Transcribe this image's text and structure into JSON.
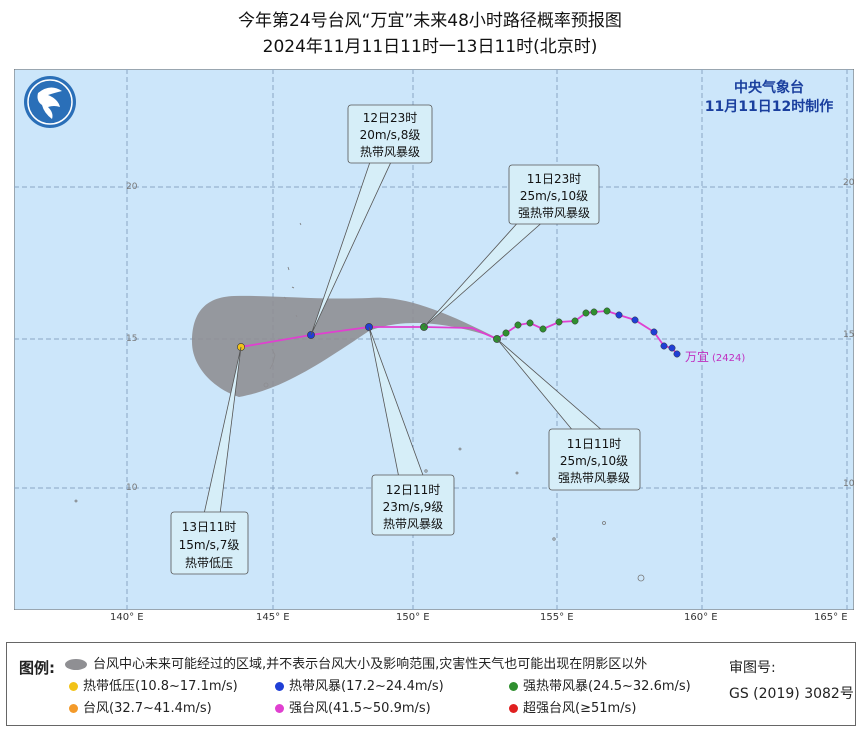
{
  "title_line1": "今年第24号台风“万宜”未来48小时路径概率预报图",
  "title_line2": "2024年11月11日11时一13日11时(北京时)",
  "issuer": {
    "name": "中央气象台",
    "time": "11月11日12时制作"
  },
  "typhoon_label": "万宜",
  "typhoon_code": "(2424)",
  "lon_labels": [
    "140° E",
    "145° E",
    "150° E",
    "155° E",
    "160° E",
    "165° E"
  ],
  "lat_labels": [
    "20",
    "15",
    "10"
  ],
  "callouts": [
    {
      "time": "12日23时",
      "wind": "20m/s,8级",
      "level": "热带风暴级"
    },
    {
      "time": "11日23时",
      "wind": "25m/s,10级",
      "level": "强热带风暴级"
    },
    {
      "time": "11日11时",
      "wind": "25m/s,10级",
      "level": "强热带风暴级"
    },
    {
      "time": "12日11时",
      "wind": "23m/s,9级",
      "level": "热带风暴级"
    },
    {
      "time": "13日11时",
      "wind": "15m/s,7级",
      "level": "热带低压"
    }
  ],
  "legend": {
    "title": "图例:",
    "cone_text": "台风中心未来可能经过的区域,并不表示台风大小及影响范围,灾害性天气也可能出现在阴影区以外",
    "items": [
      {
        "label": "热带低压(10.8~17.1m/s)",
        "color": "#f2c318"
      },
      {
        "label": "热带风暴(17.2~24.4m/s)",
        "color": "#1f3fd6"
      },
      {
        "label": "强热带风暴(24.5~32.6m/s)",
        "color": "#2f8f2f"
      },
      {
        "label": "台风(32.7~41.4m/s)",
        "color": "#f39a2a"
      },
      {
        "label": "强台风(41.5~50.9m/s)",
        "color": "#e040d0"
      },
      {
        "label": "超强台风(≥51m/s)",
        "color": "#e02020"
      }
    ],
    "approval_label": "审图号:",
    "approval_number": "GS (2019) 3082号"
  }
}
